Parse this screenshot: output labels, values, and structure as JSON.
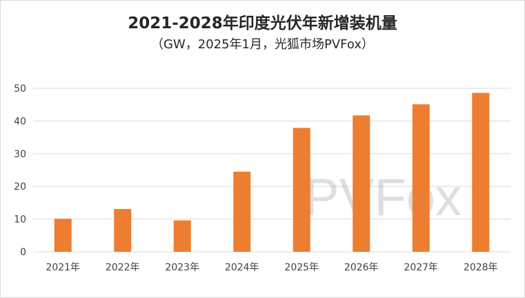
{
  "chart_data": {
    "type": "bar",
    "title": "2021-2028年印度光伏年新增装机量",
    "subtitle": "（GW，2025年1月，光狐市场PVFox）",
    "categories": [
      "2021年",
      "2022年",
      "2023年",
      "2024年",
      "2025年",
      "2026年",
      "2027年",
      "2028年"
    ],
    "values": [
      10.1,
      13.1,
      9.6,
      24.5,
      37.9,
      41.7,
      45.1,
      48.6
    ],
    "ylim": [
      0,
      50
    ],
    "yticks": [
      0,
      10,
      20,
      30,
      40,
      50
    ],
    "grid": true,
    "watermark": "PVFox",
    "colors": {
      "bar": "#ed7d31",
      "grid": "#d9d9d9",
      "text": "#404040"
    }
  }
}
